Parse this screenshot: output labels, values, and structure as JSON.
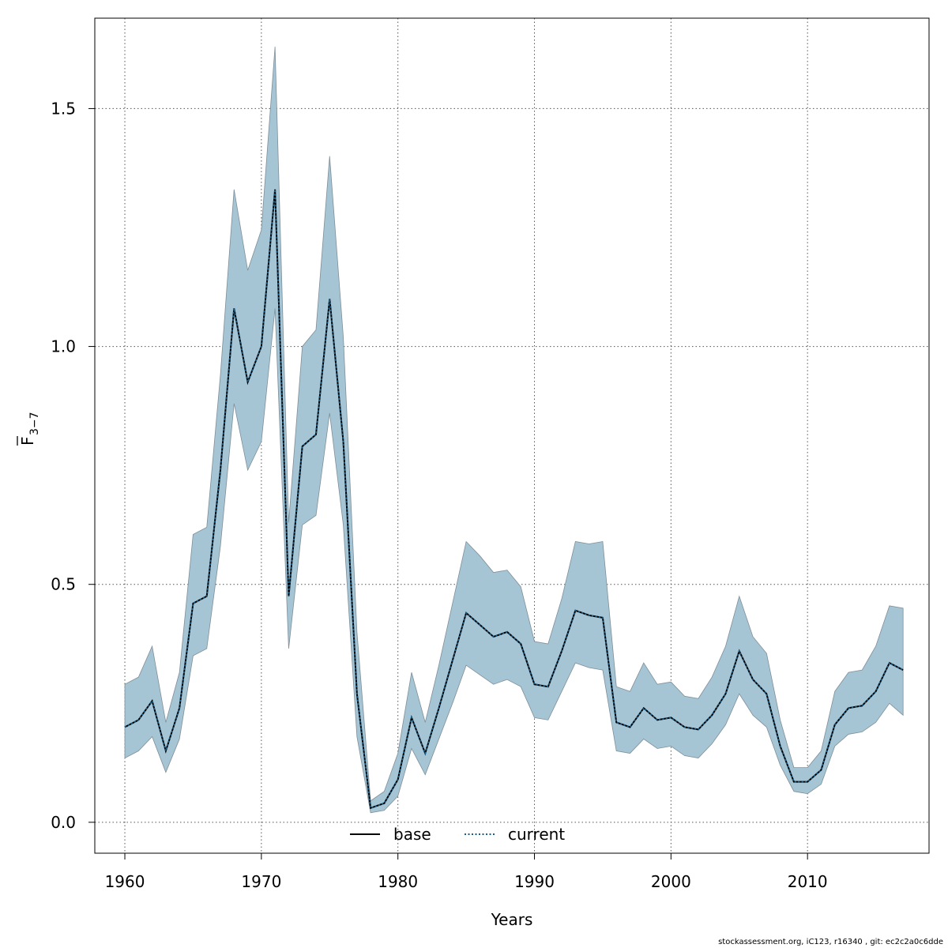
{
  "chart_data": {
    "type": "line",
    "xlabel": "Years",
    "ylabel_main": "F",
    "ylabel_sub": "3−7",
    "xlim": [
      1957.8,
      2018.9
    ],
    "ylim": [
      -0.065,
      1.69
    ],
    "x_ticks": [
      1960,
      1970,
      1980,
      1990,
      2000,
      2010
    ],
    "x_tick_labels": [
      "1960",
      "1970",
      "1980",
      "1990",
      "2000",
      "2010"
    ],
    "y_ticks": [
      0.0,
      0.5,
      1.0,
      1.5
    ],
    "y_tick_labels": [
      "0.0",
      "0.5",
      "1.0",
      "1.5"
    ],
    "grid": true,
    "legend_position": "bottom-center",
    "legend": [
      {
        "label": "base",
        "style": "solid",
        "color": "#000000"
      },
      {
        "label": "current",
        "style": "dotted",
        "color": "#1a5f8a"
      }
    ],
    "colors": {
      "band": "#a5c4d4",
      "band_edge": "#7f8f99",
      "base": "#000000",
      "current": "#1a5f8a"
    },
    "x": [
      1960,
      1961,
      1962,
      1963,
      1964,
      1965,
      1966,
      1967,
      1968,
      1969,
      1970,
      1971,
      1972,
      1973,
      1974,
      1975,
      1976,
      1977,
      1978,
      1979,
      1980,
      1981,
      1982,
      1983,
      1984,
      1985,
      1986,
      1987,
      1988,
      1989,
      1990,
      1991,
      1992,
      1993,
      1994,
      1995,
      1996,
      1997,
      1998,
      1999,
      2000,
      2001,
      2002,
      2003,
      2004,
      2005,
      2006,
      2007,
      2008,
      2009,
      2010,
      2011,
      2012,
      2013,
      2014,
      2015,
      2016,
      2017
    ],
    "series": [
      {
        "name": "base",
        "values": [
          0.2,
          0.215,
          0.255,
          0.15,
          0.24,
          0.46,
          0.475,
          0.74,
          1.08,
          0.925,
          1.0,
          1.33,
          0.475,
          0.79,
          0.815,
          1.1,
          0.8,
          0.27,
          0.03,
          0.04,
          0.09,
          0.22,
          0.145,
          0.24,
          0.34,
          0.44,
          0.415,
          0.39,
          0.4,
          0.375,
          0.29,
          0.285,
          0.36,
          0.445,
          0.435,
          0.43,
          0.21,
          0.2,
          0.24,
          0.215,
          0.22,
          0.2,
          0.195,
          0.225,
          0.27,
          0.36,
          0.3,
          0.27,
          0.16,
          0.085,
          0.085,
          0.11,
          0.205,
          0.24,
          0.245,
          0.275,
          0.335,
          0.32
        ]
      },
      {
        "name": "current",
        "values": [
          0.2,
          0.215,
          0.255,
          0.15,
          0.24,
          0.46,
          0.475,
          0.74,
          1.08,
          0.925,
          1.0,
          1.33,
          0.475,
          0.79,
          0.815,
          1.1,
          0.8,
          0.27,
          0.03,
          0.04,
          0.09,
          0.22,
          0.145,
          0.24,
          0.34,
          0.44,
          0.415,
          0.39,
          0.4,
          0.375,
          0.29,
          0.285,
          0.36,
          0.445,
          0.435,
          0.43,
          0.21,
          0.2,
          0.24,
          0.215,
          0.22,
          0.2,
          0.195,
          0.225,
          0.27,
          0.36,
          0.3,
          0.27,
          0.16,
          0.085,
          0.085,
          0.11,
          0.205,
          0.24,
          0.245,
          0.275,
          0.335,
          0.32
        ]
      }
    ],
    "ci_upper": [
      0.29,
      0.305,
      0.37,
      0.21,
      0.315,
      0.605,
      0.62,
      0.94,
      1.33,
      1.16,
      1.245,
      1.63,
      0.63,
      1.0,
      1.035,
      1.4,
      1.02,
      0.4,
      0.045,
      0.065,
      0.145,
      0.315,
      0.21,
      0.33,
      0.46,
      0.59,
      0.56,
      0.525,
      0.53,
      0.495,
      0.38,
      0.375,
      0.47,
      0.59,
      0.585,
      0.59,
      0.285,
      0.275,
      0.335,
      0.29,
      0.295,
      0.265,
      0.26,
      0.305,
      0.37,
      0.475,
      0.39,
      0.355,
      0.215,
      0.115,
      0.115,
      0.15,
      0.275,
      0.315,
      0.32,
      0.37,
      0.455,
      0.45
    ],
    "ci_lower": [
      0.135,
      0.15,
      0.18,
      0.105,
      0.175,
      0.35,
      0.365,
      0.58,
      0.88,
      0.74,
      0.8,
      1.08,
      0.365,
      0.625,
      0.645,
      0.86,
      0.625,
      0.18,
      0.02,
      0.025,
      0.055,
      0.155,
      0.1,
      0.175,
      0.25,
      0.33,
      0.31,
      0.29,
      0.3,
      0.285,
      0.22,
      0.215,
      0.275,
      0.335,
      0.325,
      0.32,
      0.15,
      0.145,
      0.175,
      0.155,
      0.16,
      0.14,
      0.135,
      0.165,
      0.205,
      0.27,
      0.225,
      0.2,
      0.12,
      0.065,
      0.06,
      0.08,
      0.16,
      0.185,
      0.19,
      0.21,
      0.25,
      0.225
    ]
  },
  "footer_text": "stockassessment.org, iC123, r16340 , git: ec2c2a0c6dde"
}
